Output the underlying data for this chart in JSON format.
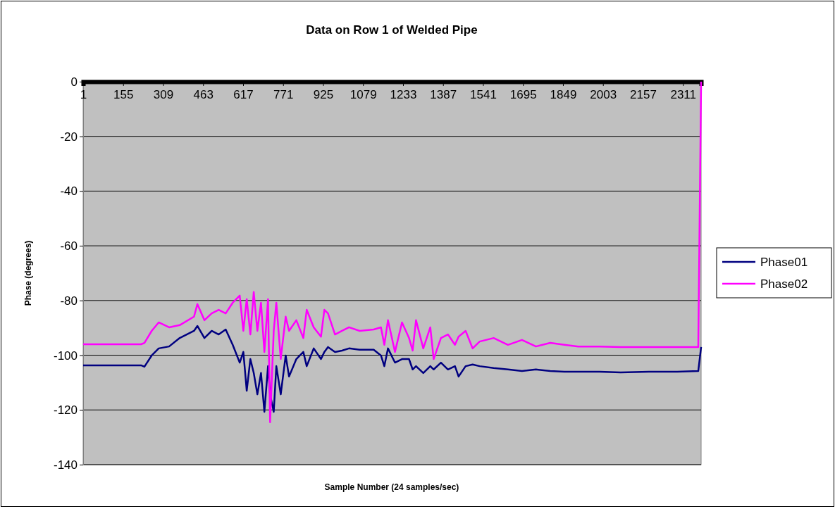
{
  "chart_data": {
    "type": "line",
    "title": "Data on Row 1 of Welded Pipe",
    "xlabel": "Sample Number (24 samples/sec)",
    "ylabel": "Phase (degrees)",
    "xlim": [
      1,
      2381
    ],
    "xticks": [
      1,
      155,
      309,
      463,
      617,
      771,
      925,
      1079,
      1233,
      1387,
      1541,
      1695,
      1849,
      2003,
      2157,
      2311
    ],
    "ylim": [
      -140,
      0
    ],
    "yticks": [
      -140,
      -120,
      -100,
      -80,
      -60,
      -40,
      -20,
      0
    ],
    "grid": "y",
    "legend": "right",
    "marker": "none",
    "line_style": "solid",
    "series": [
      {
        "name": "Phase01",
        "color": "#000080",
        "x": [
          1,
          224,
          237,
          265,
          292,
          332,
          373,
          428,
          441,
          468,
          496,
          523,
          550,
          577,
          604,
          618,
          631,
          645,
          658,
          672,
          686,
          699,
          713,
          721,
          735,
          745,
          762,
          781,
          794,
          822,
          849,
          862,
          889,
          917,
          930,
          944,
          971,
          998,
          1025,
          1066,
          1120,
          1148,
          1161,
          1175,
          1202,
          1229,
          1256,
          1270,
          1283,
          1311,
          1338,
          1351,
          1379,
          1406,
          1433,
          1447,
          1474,
          1501,
          1528,
          1582,
          1637,
          1691,
          1745,
          1800,
          1854,
          1908,
          1990,
          2071,
          2180,
          2289,
          2370,
          2381
        ],
        "values": [
          -103.7,
          -103.7,
          -104.2,
          -100.1,
          -97.5,
          -96.8,
          -93.7,
          -91.1,
          -89.3,
          -93.7,
          -91.1,
          -92.4,
          -90.6,
          -96.2,
          -102.7,
          -98.8,
          -113,
          -101.4,
          -106.5,
          -114.3,
          -106.5,
          -120.7,
          -104,
          -114.3,
          -120.7,
          -104,
          -114.3,
          -100.1,
          -107.8,
          -101.4,
          -98.8,
          -104,
          -97.5,
          -101.4,
          -98.8,
          -97,
          -98.8,
          -98.3,
          -97.5,
          -98,
          -98,
          -100.1,
          -104,
          -97.5,
          -102.7,
          -101.4,
          -101.4,
          -105.2,
          -104,
          -106.5,
          -104,
          -105.2,
          -102.7,
          -105.2,
          -104,
          -107.8,
          -104,
          -103.4,
          -104,
          -104.7,
          -105.2,
          -105.8,
          -105.2,
          -105.8,
          -106,
          -106,
          -106,
          -106.3,
          -106,
          -106,
          -105.8,
          -97
        ]
      },
      {
        "name": "Phase02",
        "color": "#ff00ff",
        "x": [
          1,
          224,
          237,
          265,
          292,
          332,
          373,
          428,
          441,
          468,
          496,
          523,
          550,
          577,
          604,
          618,
          631,
          645,
          658,
          672,
          686,
          699,
          713,
          721,
          735,
          745,
          762,
          781,
          794,
          822,
          849,
          862,
          889,
          917,
          930,
          944,
          971,
          998,
          1025,
          1066,
          1120,
          1148,
          1161,
          1175,
          1202,
          1229,
          1256,
          1270,
          1283,
          1311,
          1338,
          1351,
          1379,
          1406,
          1433,
          1447,
          1474,
          1501,
          1528,
          1582,
          1637,
          1691,
          1745,
          1800,
          1854,
          1908,
          1990,
          2071,
          2180,
          2289,
          2370,
          2381
        ],
        "values": [
          -96,
          -96,
          -95.5,
          -91.1,
          -88,
          -89.8,
          -89,
          -85.9,
          -81.3,
          -87.2,
          -84.7,
          -83.4,
          -84.7,
          -80.8,
          -78.2,
          -91.1,
          -79.5,
          -92.4,
          -76.9,
          -91.1,
          -80.8,
          -98.8,
          -79.5,
          -124.5,
          -91.1,
          -80.8,
          -101.4,
          -85.9,
          -91.1,
          -87.2,
          -93.7,
          -83.4,
          -89.8,
          -93.2,
          -83.4,
          -84.7,
          -92.4,
          -91.1,
          -89.8,
          -91.1,
          -90.6,
          -89.8,
          -96.2,
          -87.2,
          -98.8,
          -88,
          -93.7,
          -98.3,
          -87.2,
          -97.5,
          -89.8,
          -101.4,
          -93.7,
          -92.4,
          -96.2,
          -93.2,
          -91.1,
          -97.5,
          -95,
          -93.7,
          -96.2,
          -94.4,
          -96.8,
          -95.5,
          -96.2,
          -96.8,
          -96.8,
          -97,
          -97,
          -97,
          -97,
          0
        ]
      }
    ]
  }
}
